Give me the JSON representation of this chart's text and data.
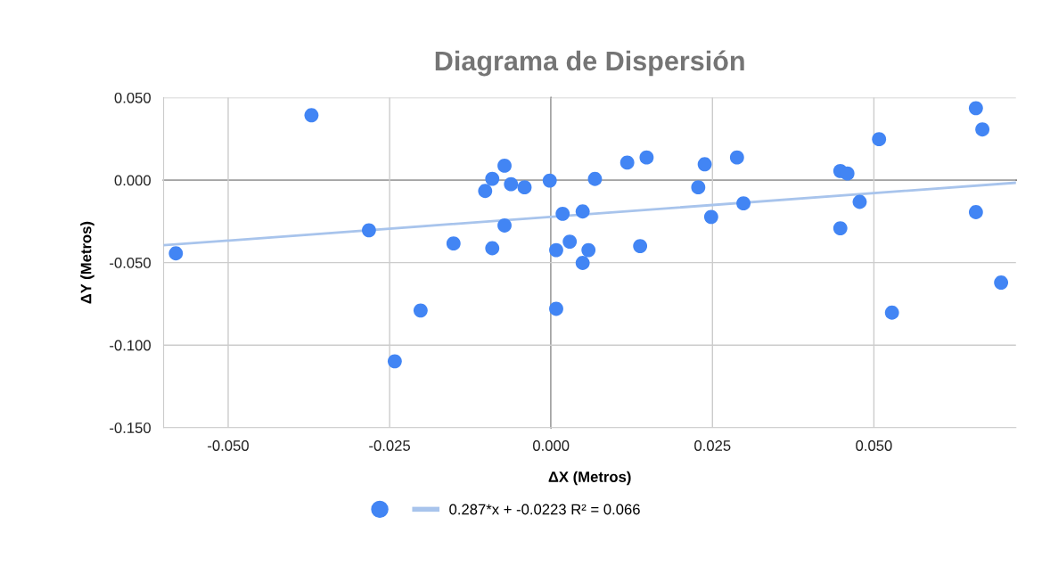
{
  "chart_data": {
    "type": "scatter",
    "title": "Diagrama de Dispersión",
    "xlabel": "ΔX (Metros)",
    "ylabel": "ΔY (Metros)",
    "xlim": [
      -0.06,
      0.072
    ],
    "ylim": [
      -0.15,
      0.05
    ],
    "xticks": [
      {
        "value": -0.05,
        "label": "-0.050"
      },
      {
        "value": -0.025,
        "label": "-0.025"
      },
      {
        "value": 0,
        "label": "0.000"
      },
      {
        "value": 0.025,
        "label": "0.025"
      },
      {
        "value": 0.05,
        "label": "0.050"
      }
    ],
    "yticks": [
      {
        "value": -0.15,
        "label": "-0.150"
      },
      {
        "value": -0.1,
        "label": "-0.100"
      },
      {
        "value": -0.05,
        "label": "-0.050"
      },
      {
        "value": 0,
        "label": "0.000"
      },
      {
        "value": 0.05,
        "label": "0.050"
      }
    ],
    "grid": true,
    "legend": "bottom",
    "marker": "circle",
    "series": [
      {
        "color": "#4285f4",
        "x": [
          -0.0581,
          -0.0371,
          -0.0282,
          -0.0242,
          -0.0202,
          -0.0151,
          -0.0102,
          -0.0091,
          -0.0091,
          -0.0072,
          -0.0072,
          -0.0062,
          -0.0041,
          -0.0002,
          0.0008,
          0.0008,
          0.0018,
          0.0029,
          0.0049,
          0.0049,
          0.0058,
          0.0068,
          0.0118,
          0.0148,
          0.0138,
          0.0228,
          0.0238,
          0.0248,
          0.0288,
          0.0298,
          0.0448,
          0.0448,
          0.0459,
          0.0478,
          0.0508,
          0.0528,
          0.0658,
          0.0668,
          0.0658,
          0.0697
        ],
        "values": [
          -0.0444,
          0.0393,
          -0.0304,
          -0.1098,
          -0.079,
          -0.0384,
          -0.0066,
          0.0008,
          -0.0413,
          0.0087,
          -0.0275,
          -0.0025,
          -0.0044,
          -0.0003,
          -0.0424,
          -0.078,
          -0.0204,
          -0.0373,
          -0.019,
          -0.0502,
          -0.0424,
          0.0007,
          0.0106,
          0.0137,
          -0.04,
          -0.0044,
          0.0096,
          -0.0223,
          0.0137,
          -0.0141,
          -0.0292,
          0.0055,
          0.004,
          -0.0132,
          0.0248,
          -0.0803,
          0.0436,
          0.0307,
          -0.0194,
          -0.0621
        ]
      },
      {
        "type": "line",
        "name": "0.287*x + -0.0223 R² = 0.066",
        "color": "#a8c4ec",
        "marker": "none",
        "x": [
          -0.06,
          0.072
        ],
        "values": [
          -0.0395,
          -0.0016
        ]
      }
    ]
  }
}
